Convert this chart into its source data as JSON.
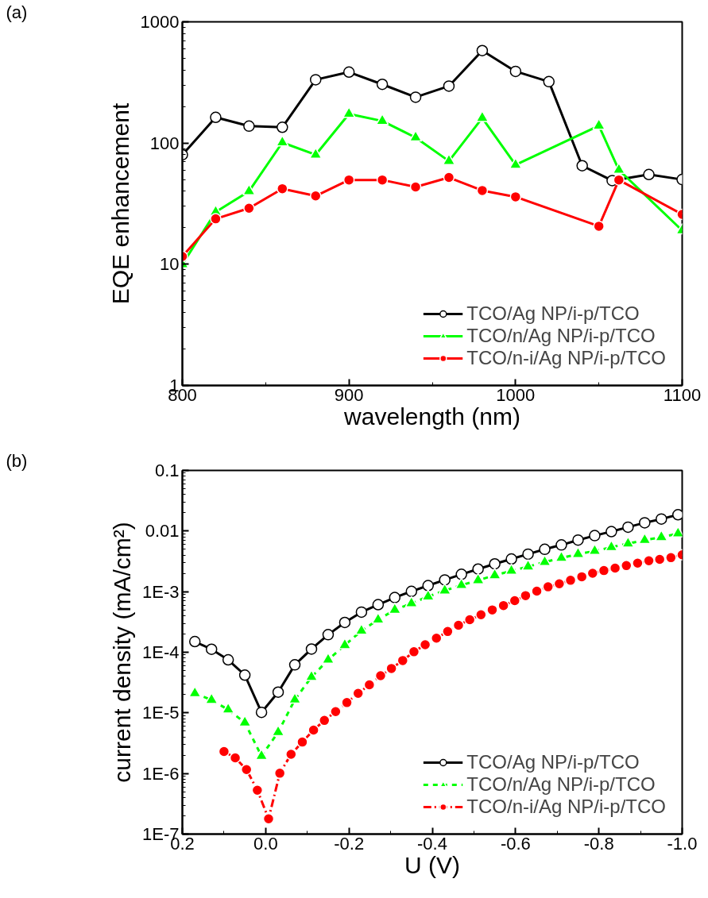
{
  "chart_data": [
    {
      "type": "line",
      "xlabel": "wavelength (nm)",
      "ylabel": "EQE enhancement",
      "annotations": [
        "(a)"
      ],
      "log": "y",
      "xlim": [
        800,
        1100
      ],
      "xticks": [
        800,
        900,
        1000,
        1100
      ],
      "ylim": [
        1,
        1000
      ],
      "yticks": [
        1,
        10,
        100,
        1000
      ],
      "legend": "bottom right",
      "grid": false,
      "series": [
        {
          "name": "TCO/Ag NP/i-p/TCO",
          "color": "#000000",
          "marker": "circle",
          "line_style": "solid",
          "x": [
            800,
            820,
            840,
            860,
            880,
            900,
            920,
            940,
            960,
            980,
            1000,
            1020,
            1040,
            1058,
            1080,
            1100
          ],
          "values": [
            80,
            163,
            138,
            135,
            333,
            385,
            305,
            239,
            295,
            579,
            390,
            321,
            65,
            49,
            55,
            50
          ]
        },
        {
          "name": "TCO/n/Ag NP/i-p/TCO",
          "color": "#00ff00",
          "marker": "triangle",
          "line_style": "solid",
          "x": [
            800,
            820,
            840,
            860,
            880,
            900,
            920,
            940,
            960,
            980,
            1000,
            1050,
            1062,
            1100
          ],
          "values": [
            10,
            27,
            40,
            101,
            80,
            174,
            152,
            111,
            71,
            161,
            66,
            139,
            60,
            19
          ]
        },
        {
          "name": "TCO/n-i/Ag NP/i-p/TCO",
          "color": "#ff0000",
          "marker": "circle",
          "line_style": "solid",
          "x": [
            800,
            820,
            840,
            860,
            880,
            900,
            920,
            940,
            960,
            980,
            1000,
            1050,
            1062,
            1100
          ],
          "values": [
            11.6,
            23.7,
            29,
            42,
            36.6,
            49.6,
            49.6,
            43.4,
            52,
            40.6,
            36,
            20.6,
            49.6,
            25.8
          ]
        }
      ]
    },
    {
      "type": "line",
      "xlabel": "U (V)",
      "ylabel": "current density (mA/cm²)",
      "annotations": [
        "(b)"
      ],
      "log": "y",
      "xlim": [
        0.2,
        -1.0
      ],
      "xticks": [
        {
          "value": 0.2,
          "label": "0.2"
        },
        {
          "value": 0,
          "label": "0.0"
        },
        {
          "value": -0.2,
          "label": "-0.2"
        },
        {
          "value": -0.4,
          "label": "-0.4"
        },
        {
          "value": -0.6,
          "label": "-0.6"
        },
        {
          "value": -0.8,
          "label": "-0.8"
        },
        {
          "value": -1.0,
          "label": "-1.0"
        }
      ],
      "ylim": [
        1e-07,
        0.1
      ],
      "yticks": [
        {
          "value": 1e-07,
          "label": "1E-7"
        },
        {
          "value": 1e-06,
          "label": "1E-6"
        },
        {
          "value": 1e-05,
          "label": "1E-5"
        },
        {
          "value": 0.0001,
          "label": "1E-4"
        },
        {
          "value": 0.001,
          "label": "1E-3"
        },
        0.01,
        0.1
      ],
      "legend": "bottom right",
      "grid": false,
      "series": [
        {
          "name": "TCO/Ag NP/i-p/TCO",
          "color": "#000000",
          "marker": "circle",
          "line_style": "solid",
          "x": [
            0.17,
            0.13,
            0.09,
            0.05,
            0.01,
            -0.03,
            -0.07,
            -0.11,
            -0.15,
            -0.19,
            -0.23,
            -0.27,
            -0.31,
            -0.35,
            -0.39,
            -0.43,
            -0.47,
            -0.51,
            -0.55,
            -0.59,
            -0.63,
            -0.67,
            -0.71,
            -0.75,
            -0.79,
            -0.83,
            -0.87,
            -0.91,
            -0.95,
            -0.99
          ],
          "values": [
            0.00015,
            0.000112,
            7.5e-05,
            4.2e-05,
            1.02e-05,
            2.2e-05,
            6.2e-05,
            0.000113,
            0.000195,
            0.00031,
            0.00046,
            0.00061,
            0.0008,
            0.00101,
            0.00126,
            0.00156,
            0.00193,
            0.00236,
            0.00287,
            0.00346,
            0.00416,
            0.005,
            0.0059,
            0.0071,
            0.0084,
            0.0098,
            0.0116,
            0.0137,
            0.0158,
            0.0186
          ]
        },
        {
          "name": "TCO/n/Ag NP/i-p/TCO",
          "color": "#00ff00",
          "marker": "triangle",
          "line_style": "dashed",
          "x": [
            0.17,
            0.13,
            0.09,
            0.05,
            0.01,
            -0.03,
            -0.07,
            -0.11,
            -0.15,
            -0.19,
            -0.23,
            -0.27,
            -0.31,
            -0.35,
            -0.39,
            -0.43,
            -0.47,
            -0.51,
            -0.55,
            -0.59,
            -0.63,
            -0.67,
            -0.71,
            -0.75,
            -0.79,
            -0.83,
            -0.87,
            -0.91,
            -0.95,
            -0.99
          ],
          "values": [
            2.1e-05,
            1.63e-05,
            1.13e-05,
            6.9e-06,
            1.94e-06,
            4.8e-06,
            1.65e-05,
            3.9e-05,
            7.5e-05,
            0.000131,
            0.000226,
            0.000345,
            0.0005,
            0.00064,
            0.00083,
            0.00104,
            0.00128,
            0.00154,
            0.00186,
            0.0022,
            0.00259,
            0.00307,
            0.0036,
            0.00416,
            0.00469,
            0.0054,
            0.0062,
            0.0071,
            0.0079,
            0.0091
          ]
        },
        {
          "name": "TCO/n-i/Ag NP/i-p/TCO",
          "color": "#ff0000",
          "marker": "circle",
          "line_style": "dotted",
          "x": [
            0.1,
            0.073,
            0.046,
            0.02,
            -0.007,
            -0.034,
            -0.061,
            -0.088,
            -0.115,
            -0.141,
            -0.168,
            -0.195,
            -0.222,
            -0.249,
            -0.276,
            -0.302,
            -0.329,
            -0.356,
            -0.383,
            -0.41,
            -0.437,
            -0.463,
            -0.49,
            -0.517,
            -0.544,
            -0.571,
            -0.598,
            -0.624,
            -0.651,
            -0.678,
            -0.705,
            -0.732,
            -0.759,
            -0.785,
            -0.812,
            -0.839,
            -0.866,
            -0.893,
            -0.92,
            -0.946,
            -0.973,
            -1.0
          ],
          "values": [
            2.3e-06,
            1.81e-06,
            1.16e-06,
            5.3e-07,
            1.79e-07,
            1.01e-06,
            2.07e-06,
            3.3e-06,
            5.2e-06,
            7.5e-06,
            1.05e-05,
            1.48e-05,
            2.1e-05,
            2.9e-05,
            4.1e-05,
            5.4e-05,
            7.3e-05,
            0.000102,
            0.000133,
            0.000171,
            0.00022,
            0.000279,
            0.000345,
            0.000416,
            0.0005,
            0.00059,
            0.00071,
            0.00086,
            0.00102,
            0.0012,
            0.00135,
            0.00154,
            0.00176,
            0.00201,
            0.00223,
            0.00245,
            0.00269,
            0.00295,
            0.00324,
            0.00341,
            0.00364,
            0.00405
          ]
        }
      ]
    }
  ]
}
